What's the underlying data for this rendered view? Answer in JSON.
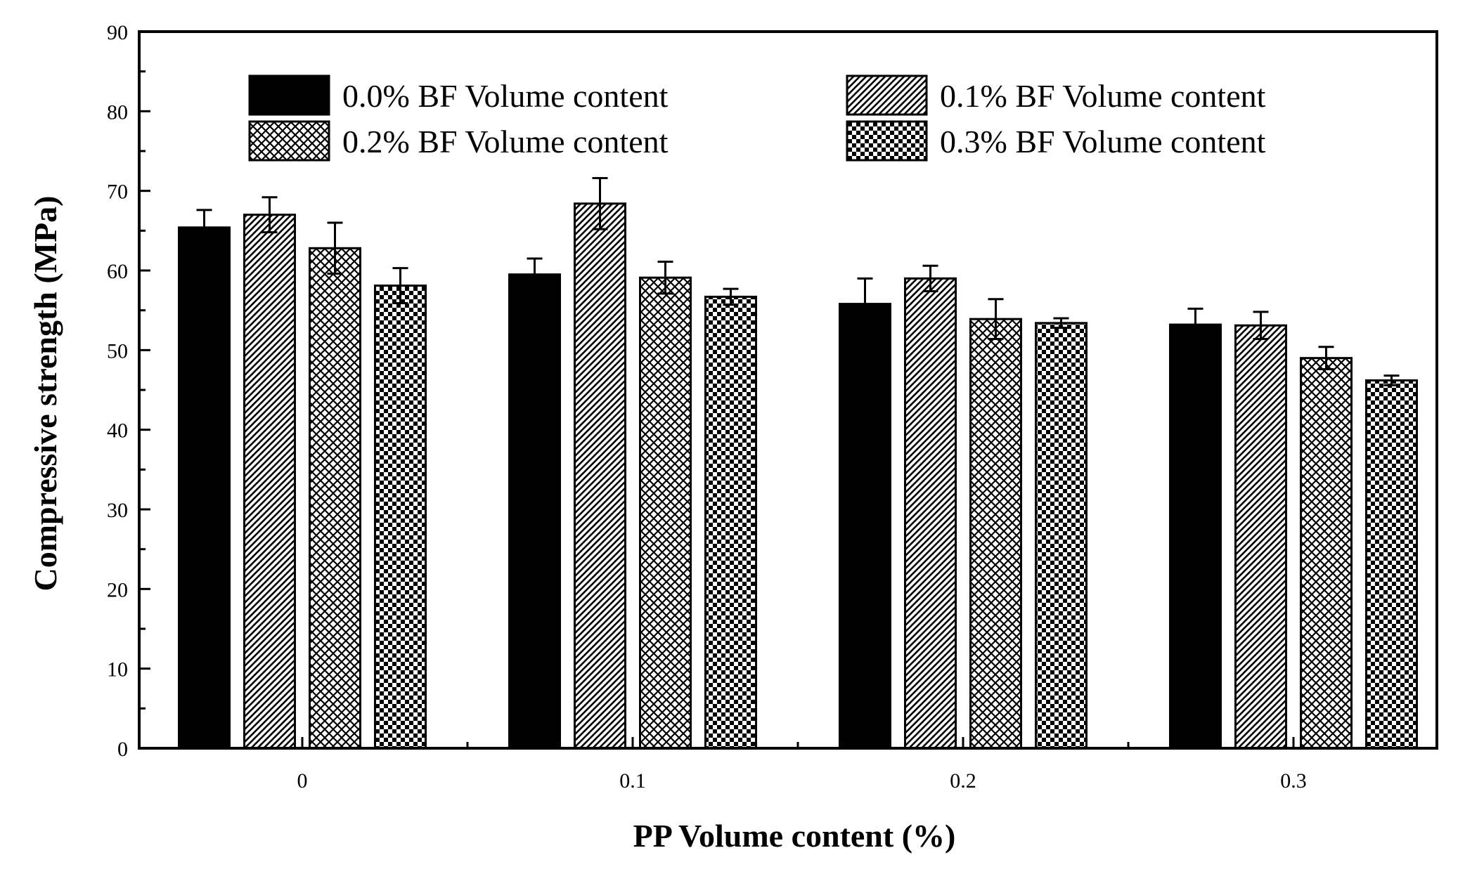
{
  "chart_data": {
    "type": "bar",
    "title": "",
    "xlabel": "PP Volume content (%)",
    "ylabel": "Compressive strength (MPa)",
    "categories": [
      "0",
      "0.1",
      "0.2",
      "0.3"
    ],
    "ylim": [
      0,
      90
    ],
    "yticks": [
      0,
      10,
      20,
      30,
      40,
      50,
      60,
      70,
      80,
      90
    ],
    "legend_position": "top",
    "series": [
      {
        "name": "0.0% BF Volume content",
        "pattern": "solid",
        "values": [
          65.4,
          59.5,
          55.8,
          53.2
        ],
        "errors": [
          2.2,
          2.0,
          3.2,
          2.0
        ]
      },
      {
        "name": "0.1% BF Volume content",
        "pattern": "diagonal",
        "values": [
          67.0,
          68.4,
          59.0,
          53.1
        ],
        "errors": [
          2.2,
          3.2,
          1.6,
          1.7
        ]
      },
      {
        "name": "0.2% BF Volume content",
        "pattern": "crosshatch",
        "values": [
          62.8,
          59.1,
          53.9,
          49.0
        ],
        "errors": [
          3.2,
          2.0,
          2.5,
          1.4
        ]
      },
      {
        "name": "0.3% BF Volume content",
        "pattern": "checker",
        "values": [
          58.1,
          56.7,
          53.4,
          46.2
        ],
        "errors": [
          2.2,
          1.0,
          0.6,
          0.6
        ]
      }
    ]
  }
}
